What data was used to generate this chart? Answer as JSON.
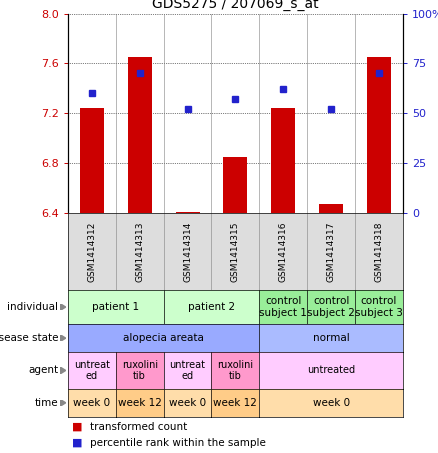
{
  "title": "GDS5275 / 207069_s_at",
  "samples": [
    "GSM1414312",
    "GSM1414313",
    "GSM1414314",
    "GSM1414315",
    "GSM1414316",
    "GSM1414317",
    "GSM1414318"
  ],
  "bar_values": [
    7.24,
    7.65,
    6.41,
    6.85,
    7.24,
    6.47,
    7.65
  ],
  "dot_values": [
    60,
    70,
    52,
    57,
    62,
    52,
    70
  ],
  "ylim_left": [
    6.4,
    8.0
  ],
  "ylim_right": [
    0,
    100
  ],
  "yticks_left": [
    6.4,
    6.8,
    7.2,
    7.6,
    8.0
  ],
  "yticks_right": [
    0,
    25,
    50,
    75,
    100
  ],
  "bar_color": "#CC0000",
  "dot_color": "#2222CC",
  "bar_baseline": 6.4,
  "xlabel_color_left": "#CC0000",
  "xlabel_color_right": "#2222CC",
  "indiv_data": [
    {
      "label": "patient 1",
      "span": [
        0,
        2
      ],
      "color": "#ccffcc"
    },
    {
      "label": "patient 2",
      "span": [
        2,
        4
      ],
      "color": "#ccffcc"
    },
    {
      "label": "control\nsubject 1",
      "span": [
        4,
        5
      ],
      "color": "#99ee99"
    },
    {
      "label": "control\nsubject 2",
      "span": [
        5,
        6
      ],
      "color": "#99ee99"
    },
    {
      "label": "control\nsubject 3",
      "span": [
        6,
        7
      ],
      "color": "#99ee99"
    }
  ],
  "disease_data": [
    {
      "label": "alopecia areata",
      "span": [
        0,
        4
      ],
      "color": "#99aaff"
    },
    {
      "label": "normal",
      "span": [
        4,
        7
      ],
      "color": "#aabbff"
    }
  ],
  "agent_data": [
    {
      "label": "untreat\ned",
      "span": [
        0,
        1
      ],
      "color": "#ffccff"
    },
    {
      "label": "ruxolini\ntib",
      "span": [
        1,
        2
      ],
      "color": "#ff99cc"
    },
    {
      "label": "untreat\ned",
      "span": [
        2,
        3
      ],
      "color": "#ffccff"
    },
    {
      "label": "ruxolini\ntib",
      "span": [
        3,
        4
      ],
      "color": "#ff99cc"
    },
    {
      "label": "untreated",
      "span": [
        4,
        7
      ],
      "color": "#ffccff"
    }
  ],
  "time_data": [
    {
      "label": "week 0",
      "span": [
        0,
        1
      ],
      "color": "#ffddaa"
    },
    {
      "label": "week 12",
      "span": [
        1,
        2
      ],
      "color": "#ffcc88"
    },
    {
      "label": "week 0",
      "span": [
        2,
        3
      ],
      "color": "#ffddaa"
    },
    {
      "label": "week 12",
      "span": [
        3,
        4
      ],
      "color": "#ffcc88"
    },
    {
      "label": "week 0",
      "span": [
        4,
        7
      ],
      "color": "#ffddaa"
    }
  ],
  "row_labels": [
    "individual",
    "disease state",
    "agent",
    "time"
  ],
  "legend_red": "transformed count",
  "legend_blue": "percentile rank within the sample"
}
